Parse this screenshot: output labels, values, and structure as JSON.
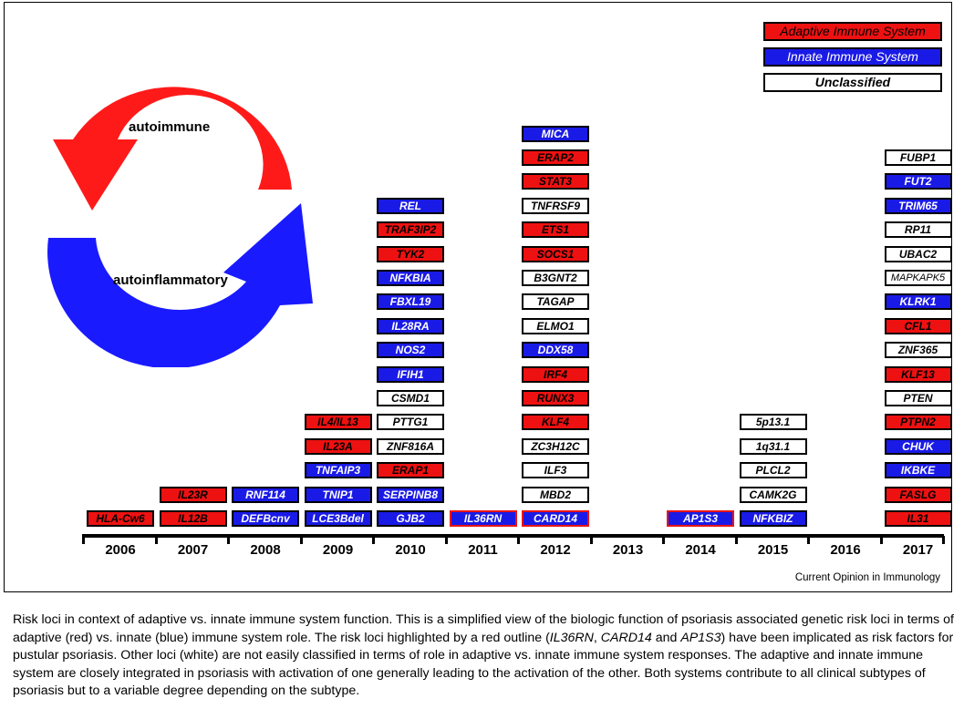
{
  "colors": {
    "adaptive": "#ee1111",
    "innate": "#1a1ae6",
    "unclassified": "#ffffff",
    "pustular_outline": "#e81515"
  },
  "legend": {
    "adaptive": "Adaptive Immune System",
    "innate": "Innate Immune System",
    "unclassified": "Unclassified"
  },
  "cycle": {
    "top_label": "autoimmune",
    "bottom_label": "autoinflammatory"
  },
  "source": "Current Opinion in Immunology",
  "years": [
    "2006",
    "2007",
    "2008",
    "2009",
    "2010",
    "2011",
    "2012",
    "2013",
    "2014",
    "2015",
    "2016",
    "2017"
  ],
  "loci_by_year": [
    {
      "year": "2006",
      "loci": [
        {
          "name": "HLA-Cw6",
          "type": "adaptive"
        }
      ]
    },
    {
      "year": "2007",
      "loci": [
        {
          "name": "IL12B",
          "type": "adaptive"
        },
        {
          "name": "IL23R",
          "type": "adaptive"
        }
      ]
    },
    {
      "year": "2008",
      "loci": [
        {
          "name": "DEFBcnv",
          "type": "innate"
        },
        {
          "name": "RNF114",
          "type": "innate"
        }
      ]
    },
    {
      "year": "2009",
      "loci": [
        {
          "name": "LCE3Bdel",
          "type": "innate"
        },
        {
          "name": "TNIP1",
          "type": "innate"
        },
        {
          "name": "TNFAIP3",
          "type": "innate"
        },
        {
          "name": "IL23A",
          "type": "adaptive"
        },
        {
          "name": "IL4/IL13",
          "type": "adaptive"
        }
      ]
    },
    {
      "year": "2010",
      "loci": [
        {
          "name": "GJB2",
          "type": "innate"
        },
        {
          "name": "SERPINB8",
          "type": "innate"
        },
        {
          "name": "ERAP1",
          "type": "adaptive"
        },
        {
          "name": "ZNF816A",
          "type": "unclassified"
        },
        {
          "name": "PTTG1",
          "type": "unclassified"
        },
        {
          "name": "CSMD1",
          "type": "unclassified"
        },
        {
          "name": "IFIH1",
          "type": "innate"
        },
        {
          "name": "NOS2",
          "type": "innate"
        },
        {
          "name": "IL28RA",
          "type": "innate"
        },
        {
          "name": "FBXL19",
          "type": "innate"
        },
        {
          "name": "NFKBIA",
          "type": "innate"
        },
        {
          "name": "TYK2",
          "type": "adaptive"
        },
        {
          "name": "TRAF3IP2",
          "type": "adaptive"
        },
        {
          "name": "REL",
          "type": "innate"
        }
      ]
    },
    {
      "year": "2011",
      "loci": [
        {
          "name": "IL36RN",
          "type": "innate",
          "pustular": true
        }
      ]
    },
    {
      "year": "2012",
      "loci": [
        {
          "name": "CARD14",
          "type": "innate",
          "pustular": true
        },
        {
          "name": "MBD2",
          "type": "unclassified"
        },
        {
          "name": "ILF3",
          "type": "unclassified"
        },
        {
          "name": "ZC3H12C",
          "type": "unclassified"
        },
        {
          "name": "KLF4",
          "type": "adaptive"
        },
        {
          "name": "RUNX3",
          "type": "adaptive"
        },
        {
          "name": "IRF4",
          "type": "adaptive"
        },
        {
          "name": "DDX58",
          "type": "innate"
        },
        {
          "name": "ELMO1",
          "type": "unclassified"
        },
        {
          "name": "TAGAP",
          "type": "unclassified"
        },
        {
          "name": "B3GNT2",
          "type": "unclassified"
        },
        {
          "name": "SOCS1",
          "type": "adaptive"
        },
        {
          "name": "ETS1",
          "type": "adaptive"
        },
        {
          "name": "TNFRSF9",
          "type": "unclassified"
        },
        {
          "name": "STAT3",
          "type": "adaptive"
        },
        {
          "name": "ERAP2",
          "type": "adaptive"
        },
        {
          "name": "MICA",
          "type": "innate"
        }
      ]
    },
    {
      "year": "2013",
      "loci": []
    },
    {
      "year": "2014",
      "loci": [
        {
          "name": "AP1S3",
          "type": "innate",
          "pustular": true
        }
      ]
    },
    {
      "year": "2015",
      "loci": [
        {
          "name": "NFKBIZ",
          "type": "innate"
        },
        {
          "name": "CAMK2G",
          "type": "unclassified"
        },
        {
          "name": "PLCL2",
          "type": "unclassified"
        },
        {
          "name": "1q31.1",
          "type": "unclassified"
        },
        {
          "name": "5p13.1",
          "type": "unclassified"
        }
      ]
    },
    {
      "year": "2016",
      "loci": []
    },
    {
      "year": "2017",
      "loci": [
        {
          "name": "IL31",
          "type": "adaptive"
        },
        {
          "name": "FASLG",
          "type": "adaptive"
        },
        {
          "name": "IKBKE",
          "type": "innate"
        },
        {
          "name": "CHUK",
          "type": "innate"
        },
        {
          "name": "PTPN2",
          "type": "adaptive"
        },
        {
          "name": "PTEN",
          "type": "unclassified"
        },
        {
          "name": "KLF13",
          "type": "adaptive"
        },
        {
          "name": "ZNF365",
          "type": "unclassified"
        },
        {
          "name": "CFL1",
          "type": "adaptive"
        },
        {
          "name": "KLRK1",
          "type": "innate"
        },
        {
          "name": "MAPKAPK5",
          "type": "unclassified"
        },
        {
          "name": "UBAC2",
          "type": "unclassified"
        },
        {
          "name": "RP11",
          "type": "unclassified"
        },
        {
          "name": "TRIM65",
          "type": "innate"
        },
        {
          "name": "FUT2",
          "type": "innate"
        },
        {
          "name": "FUBP1",
          "type": "unclassified"
        }
      ]
    }
  ],
  "caption": {
    "part1": "Risk loci in context of adaptive vs. innate immune system function. This is a simplified view of the biologic function of psoriasis associated genetic risk loci in terms of adaptive (red) vs. innate (blue) immune system role. The risk loci highlighted by a red outline (",
    "italic1": "IL36RN",
    "sep1": ", ",
    "italic2": "CARD14",
    "sep2": " and ",
    "italic3": "AP1S3",
    "part2": ") have been implicated as risk factors for pustular psoriasis. Other loci (white) are not easily classified in terms of role in adaptive vs. innate immune system responses. The adaptive and innate immune system are closely integrated in psoriasis with activation of one generally leading to the activation of the other. Both systems contribute to all clinical subtypes of psoriasis but to a variable degree depending on the subtype."
  }
}
